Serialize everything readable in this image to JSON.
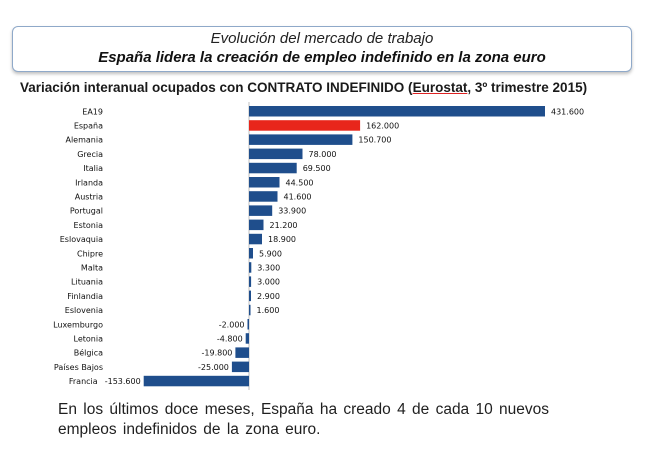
{
  "header": {
    "line1": "Evolución del mercado de trabajo",
    "line2": "España lidera la creación de empleo indefinido en la zona euro"
  },
  "chart_title": {
    "prefix": "Variación interanual ocupados con CONTRATO INDEFINIDO (",
    "highlight": "Eurostat",
    "suffix": ", 3º trimestre 2015)"
  },
  "footnote": {
    "line1": "En los últimos doce meses, España ha creado 4 de cada 10 nuevos",
    "line2": "empleos indefinidos de la zona euro."
  },
  "colors": {
    "bar": "#1f4e8c",
    "highlight": "#e8261b"
  },
  "chart_data": {
    "type": "bar",
    "orientation": "horizontal",
    "title": "Variación interanual ocupados con CONTRATO INDEFINIDO (Eurostat, 3º trimestre 2015)",
    "categories": [
      "EA19",
      "España",
      "Alemania",
      "Grecia",
      "Italia",
      "Irlanda",
      "Austria",
      "Portugal",
      "Estonia",
      "Eslovaquia",
      "Chipre",
      "Malta",
      "Lituania",
      "Finlandia",
      "Eslovenia",
      "Luxemburgo",
      "Letonia",
      "Bélgica",
      "Países Bajos",
      "Francia"
    ],
    "values": [
      431600,
      162000,
      150700,
      78000,
      69500,
      44500,
      41600,
      33900,
      21200,
      18900,
      5900,
      3300,
      3000,
      2900,
      1600,
      -2000,
      -4800,
      -19800,
      -25000,
      -153600
    ],
    "value_labels": [
      "431.600",
      "162.000",
      "150.700",
      "78.000",
      "69.500",
      "44.500",
      "41.600",
      "33.900",
      "21.200",
      "18.900",
      "5.900",
      "3.300",
      "3.000",
      "2.900",
      "1.600",
      "-2.000",
      "-4.800",
      "-19.800",
      "-25.000",
      "-153.600"
    ],
    "highlight_category": "España",
    "xlim": [
      -153600,
      431600
    ],
    "grid": false,
    "legend": "none"
  }
}
